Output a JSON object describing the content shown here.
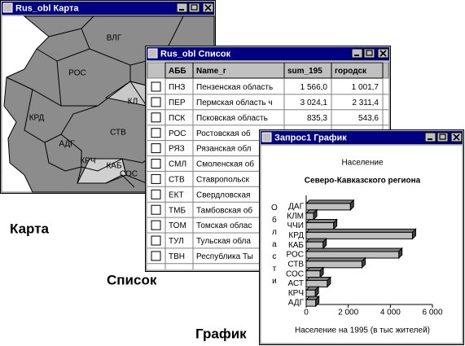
{
  "map_window": {
    "title": "Rus_obl Карта",
    "regions": [
      "ВЛГ",
      "РОС",
      "КЛ",
      "КРД",
      "АДГ",
      "СТВ",
      "КРЧ",
      "КАБ",
      "СОС"
    ]
  },
  "list_window": {
    "title": "Rus_obl Список",
    "columns": [
      "АББ",
      "Name_r",
      "sum_195",
      "городск"
    ],
    "rows": [
      [
        "ПНЗ",
        "Пензенская область",
        "1 566,0",
        "1 001,7"
      ],
      [
        "ПЕР",
        "Пермская область ч",
        "3 024,1",
        "2 311,4"
      ],
      [
        "ПСК",
        "Псковская область",
        "835,3",
        "543,6"
      ],
      [
        "РОС",
        "Ростовская об"
      ],
      [
        "РЯЗ",
        "Рязанская обл"
      ],
      [
        "СМЛ",
        "Смоленская об"
      ],
      [
        "СТВ",
        "Ставропольск"
      ],
      [
        "ЕКТ",
        "Свердловская"
      ],
      [
        "ТМБ",
        "Тамбовская об"
      ],
      [
        "ТОМ",
        "Томская облас"
      ],
      [
        "ТУЛ",
        "Тульская обла"
      ],
      [
        "ТВН",
        "Республика Ты"
      ]
    ]
  },
  "chart_window": {
    "title": "Запрос1 График"
  },
  "captions": {
    "map": "Карта",
    "list": "Список",
    "chart": "График"
  },
  "chart_data": {
    "type": "bar",
    "orientation": "horizontal",
    "title": "Население",
    "subtitle": "Северо-Кавказского региона",
    "y_label": "Области",
    "x_label": "Население на 1995 (в тыс жителей)",
    "categories": [
      "ДАГ",
      "КЛМ",
      "ЧЧИ",
      "КРД",
      "КАБ",
      "РОС",
      "СТВ",
      "СОС",
      "АСТ",
      "КРЧ",
      "АДГ"
    ],
    "values": [
      2100,
      350,
      1300,
      5050,
      800,
      4400,
      2650,
      660,
      1000,
      430,
      450
    ],
    "color": "#c0c0c0",
    "xlim": [
      0,
      6000
    ],
    "xticks": [
      0,
      {
        "value": 2000,
        "label": "2 000"
      },
      {
        "value": 4000,
        "label": "4 000"
      },
      {
        "value": 6000,
        "label": "6 000"
      }
    ]
  }
}
